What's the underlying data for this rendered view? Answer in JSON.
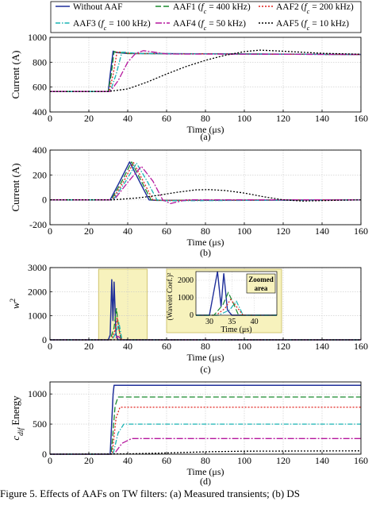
{
  "legend": {
    "entries": [
      {
        "label": "Without AAF",
        "color": "#1f2f9a",
        "dash": "solid"
      },
      {
        "label": "AAF1 (f_c = 400 kHz)",
        "color": "#1a8a2e",
        "dash": "dash"
      },
      {
        "label": "AAF2 (f_c = 200 kHz)",
        "color": "#e0201b",
        "dash": "dot"
      },
      {
        "label": "AAF3 (f_c = 100 kHz)",
        "color": "#19b3b3",
        "dash": "dashdot"
      },
      {
        "label": "AAF4 (f_c = 50 kHz)",
        "color": "#b5179e",
        "dash": "dashdot2"
      },
      {
        "label": "AAF5 (f_c = 10 kHz)",
        "color": "#000000",
        "dash": "dot"
      }
    ]
  },
  "chart_data": [
    {
      "type": "line",
      "panel": "(a)",
      "xlabel": "Time (μs)",
      "ylabel": "Current (A)",
      "xlim": [
        0,
        160
      ],
      "ylim": [
        400,
        1000
      ],
      "xticks": [
        0,
        20,
        40,
        60,
        80,
        100,
        120,
        140,
        160
      ],
      "yticks": [
        400,
        600,
        800,
        1000
      ],
      "grid": true,
      "series": [
        {
          "name": "Without AAF",
          "x": [
            0,
            30,
            31,
            32.5,
            34,
            40,
            160
          ],
          "y": [
            565,
            565,
            700,
            888,
            878,
            870,
            862
          ]
        },
        {
          "name": "AAF1 (f_c = 400 kHz)",
          "x": [
            0,
            30,
            31.5,
            33,
            35,
            40,
            160
          ],
          "y": [
            565,
            565,
            700,
            885,
            880,
            870,
            862
          ]
        },
        {
          "name": "AAF2 (f_c = 200 kHz)",
          "x": [
            0,
            30.5,
            32.5,
            34.5,
            37,
            42,
            160
          ],
          "y": [
            565,
            565,
            700,
            882,
            880,
            870,
            862
          ]
        },
        {
          "name": "AAF3 (f_c = 100 kHz)",
          "x": [
            0,
            31,
            34,
            37,
            39,
            45,
            160
          ],
          "y": [
            565,
            565,
            700,
            880,
            880,
            870,
            862
          ]
        },
        {
          "name": "AAF4 (f_c = 50 kHz)",
          "x": [
            0,
            31,
            35,
            40,
            44,
            48,
            54,
            60,
            160
          ],
          "y": [
            565,
            565,
            650,
            800,
            870,
            893,
            880,
            866,
            862
          ]
        },
        {
          "name": "AAF5 (f_c = 10 kHz)",
          "x": [
            0,
            30,
            40,
            50,
            60,
            70,
            80,
            90,
            100,
            108,
            120,
            140,
            160
          ],
          "y": [
            565,
            565,
            585,
            640,
            705,
            765,
            815,
            855,
            885,
            897,
            888,
            872,
            864
          ]
        }
      ]
    },
    {
      "type": "line",
      "panel": "(b)",
      "xlabel": "Time (μs)",
      "ylabel": "Current (A)",
      "xlim": [
        0,
        160
      ],
      "ylim": [
        -200,
        400
      ],
      "xticks": [
        0,
        20,
        40,
        60,
        80,
        100,
        120,
        140,
        160
      ],
      "yticks": [
        -200,
        0,
        200,
        400
      ],
      "grid": true,
      "series": [
        {
          "name": "Without AAF",
          "x": [
            0,
            31,
            36,
            41,
            46,
            51,
            55,
            160
          ],
          "y": [
            0,
            0,
            150,
            305,
            150,
            0,
            -5,
            0
          ]
        },
        {
          "name": "AAF1 (f_c = 400 kHz)",
          "x": [
            0,
            31.5,
            37,
            42,
            47,
            52,
            56,
            160
          ],
          "y": [
            0,
            0,
            150,
            305,
            150,
            0,
            -5,
            0
          ]
        },
        {
          "name": "AAF2 (f_c = 200 kHz)",
          "x": [
            0,
            32,
            38,
            43,
            48,
            53,
            57,
            160
          ],
          "y": [
            0,
            0,
            150,
            300,
            150,
            0,
            -5,
            0
          ]
        },
        {
          "name": "AAF3 (f_c = 100 kHz)",
          "x": [
            0,
            32.5,
            39,
            44.5,
            50,
            55,
            59,
            160
          ],
          "y": [
            0,
            0,
            150,
            295,
            150,
            0,
            -8,
            0
          ]
        },
        {
          "name": "AAF4 (f_c = 50 kHz)",
          "x": [
            0,
            33,
            40,
            47,
            53,
            58,
            62,
            70,
            160
          ],
          "y": [
            0,
            0,
            140,
            270,
            150,
            0,
            -30,
            0,
            0
          ]
        },
        {
          "name": "AAF5 (f_c = 10 kHz)",
          "x": [
            0,
            32,
            45,
            55,
            65,
            75,
            82,
            90,
            100,
            110,
            120,
            130,
            145,
            160
          ],
          "y": [
            0,
            0,
            15,
            35,
            60,
            80,
            82,
            75,
            55,
            25,
            0,
            -10,
            -5,
            0
          ]
        }
      ]
    },
    {
      "type": "line",
      "panel": "(c)",
      "xlabel": "Time (μs)",
      "ylabel": "w^2",
      "xlim": [
        0,
        160
      ],
      "ylim": [
        0,
        3000
      ],
      "xticks": [
        0,
        20,
        40,
        60,
        80,
        100,
        120,
        140,
        160
      ],
      "yticks": [
        0,
        1000,
        2000,
        3000
      ],
      "grid": true,
      "highlight": {
        "x": [
          25,
          50
        ],
        "color": "#f7f2bd"
      },
      "series": [
        {
          "name": "Without AAF",
          "x": [
            0,
            30,
            31,
            31.8,
            32.4,
            33,
            34,
            35,
            160
          ],
          "y": [
            0,
            0,
            200,
            2500,
            800,
            2400,
            200,
            0,
            0
          ]
        },
        {
          "name": "AAF1 (f_c = 400 kHz)",
          "x": [
            0,
            31,
            33,
            34.2,
            35.2,
            36.5,
            160
          ],
          "y": [
            0,
            0,
            500,
            1300,
            600,
            0,
            0
          ]
        },
        {
          "name": "AAF2 (f_c = 200 kHz)",
          "x": [
            0,
            31.5,
            33.5,
            34.6,
            35.8,
            37,
            160
          ],
          "y": [
            0,
            0,
            400,
            900,
            300,
            0,
            0
          ]
        },
        {
          "name": "AAF3 (f_c = 100 kHz)",
          "x": [
            0,
            32,
            34,
            35.5,
            37,
            160
          ],
          "y": [
            0,
            0,
            300,
            700,
            0,
            0
          ]
        },
        {
          "name": "AAF4 (f_c = 50 kHz)",
          "x": [
            0,
            33,
            35,
            37,
            160
          ],
          "y": [
            0,
            0,
            150,
            0,
            0
          ]
        },
        {
          "name": "AAF5 (f_c = 10 kHz)",
          "x": [
            0,
            160
          ],
          "y": [
            0,
            0
          ]
        }
      ],
      "inset": {
        "title": "Zoomed area",
        "xlabel": "Time (μs)",
        "ylabel": "(Wavelet Coef.)²",
        "xlim": [
          27,
          45
        ],
        "ylim": [
          0,
          2500
        ],
        "xticks": [
          30,
          35,
          40
        ],
        "yticks": [
          0,
          1000,
          2000
        ],
        "series": [
          {
            "name": "Without AAF",
            "x": [
              27,
              30,
              31.8,
              32.6,
              33.2,
              34,
              35,
              45
            ],
            "y": [
              0,
              0,
              2500,
              500,
              2400,
              300,
              0,
              0
            ]
          },
          {
            "name": "AAF1 (f_c = 400 kHz)",
            "x": [
              27,
              31,
              33,
              34.2,
              35.3,
              36.5,
              45
            ],
            "y": [
              0,
              0,
              600,
              1300,
              700,
              0,
              0
            ]
          },
          {
            "name": "AAF2 (f_c = 200 kHz)",
            "x": [
              27,
              31.5,
              33.5,
              34.7,
              36,
              37.5,
              45
            ],
            "y": [
              0,
              0,
              400,
              900,
              500,
              0,
              0
            ]
          },
          {
            "name": "AAF3 (f_c = 100 kHz)",
            "x": [
              27,
              32,
              34.5,
              36,
              37.5,
              45
            ],
            "y": [
              0,
              0,
              300,
              800,
              0,
              0
            ]
          }
        ]
      }
    },
    {
      "type": "line",
      "panel": "(d)",
      "xlabel": "Time (μs)",
      "ylabel": "c_dif  Energy",
      "xlim": [
        0,
        160
      ],
      "ylim": [
        0,
        1200
      ],
      "xticks": [
        0,
        20,
        40,
        60,
        80,
        100,
        120,
        140,
        160
      ],
      "yticks": [
        0,
        500,
        1000
      ],
      "grid": true,
      "series": [
        {
          "name": "Without AAF",
          "x": [
            0,
            31,
            32.5,
            33,
            160
          ],
          "y": [
            0,
            0,
            1000,
            1145,
            1145
          ]
        },
        {
          "name": "AAF1 (f_c = 400 kHz)",
          "x": [
            0,
            31.5,
            33.5,
            35,
            160
          ],
          "y": [
            0,
            0,
            800,
            950,
            950
          ]
        },
        {
          "name": "AAF2 (f_c = 200 kHz)",
          "x": [
            0,
            32,
            34,
            36,
            160
          ],
          "y": [
            0,
            0,
            600,
            780,
            780
          ]
        },
        {
          "name": "AAF3 (f_c = 100 kHz)",
          "x": [
            0,
            32.5,
            35,
            38,
            160
          ],
          "y": [
            0,
            0,
            350,
            500,
            500
          ]
        },
        {
          "name": "AAF4 (f_c = 50 kHz)",
          "x": [
            0,
            33,
            37,
            42,
            160
          ],
          "y": [
            0,
            0,
            180,
            260,
            260
          ]
        },
        {
          "name": "AAF5 (f_c = 10 kHz)",
          "x": [
            0,
            40,
            60,
            80,
            100,
            160
          ],
          "y": [
            0,
            5,
            20,
            40,
            50,
            55
          ]
        }
      ]
    }
  ],
  "panel_labels": [
    "(a)",
    "(b)",
    "(c)",
    "(d)"
  ],
  "caption": "Figure 5.  Effects of AAFs on TW filters: (a) Measured transients; (b) DS"
}
